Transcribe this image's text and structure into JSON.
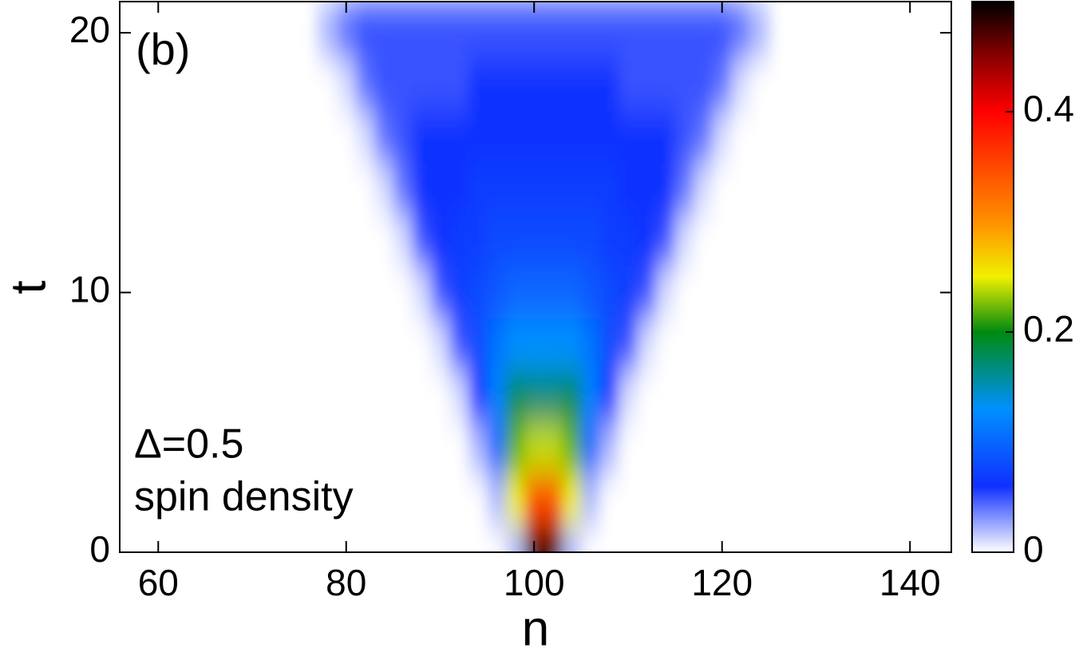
{
  "chart_data": {
    "type": "heatmap",
    "annotations": [
      "(b)",
      "Δ=0.5",
      "spin density"
    ],
    "xlabel": "n",
    "ylabel": "t",
    "x": [
      78,
      80,
      82,
      84,
      86,
      88,
      90,
      92,
      94,
      96,
      98,
      100,
      102,
      104,
      106,
      108,
      110,
      112,
      114,
      116,
      118,
      120,
      122,
      124
    ],
    "y": [
      0,
      2,
      4,
      6,
      8,
      10,
      12,
      14,
      16,
      18,
      20
    ],
    "z": [
      [
        0,
        0,
        0,
        0,
        0,
        0,
        0,
        0,
        0,
        0,
        0.02,
        0.48,
        0.48,
        0.02,
        0,
        0,
        0,
        0,
        0,
        0,
        0,
        0,
        0,
        0
      ],
      [
        0,
        0,
        0,
        0,
        0,
        0,
        0,
        0,
        0,
        0.02,
        0.25,
        0.35,
        0.35,
        0.25,
        0.02,
        0,
        0,
        0,
        0,
        0,
        0,
        0,
        0,
        0
      ],
      [
        0,
        0,
        0,
        0,
        0,
        0,
        0,
        0,
        0.02,
        0.1,
        0.22,
        0.24,
        0.24,
        0.22,
        0.1,
        0.02,
        0,
        0,
        0,
        0,
        0,
        0,
        0,
        0
      ],
      [
        0,
        0,
        0,
        0,
        0,
        0,
        0,
        0.01,
        0.06,
        0.12,
        0.18,
        0.17,
        0.17,
        0.18,
        0.12,
        0.06,
        0.01,
        0,
        0,
        0,
        0,
        0,
        0,
        0
      ],
      [
        0,
        0,
        0,
        0,
        0,
        0,
        0.01,
        0.05,
        0.08,
        0.11,
        0.13,
        0.13,
        0.13,
        0.13,
        0.11,
        0.08,
        0.05,
        0.01,
        0,
        0,
        0,
        0,
        0,
        0
      ],
      [
        0,
        0,
        0,
        0,
        0,
        0.01,
        0.05,
        0.07,
        0.08,
        0.09,
        0.1,
        0.1,
        0.1,
        0.1,
        0.09,
        0.08,
        0.07,
        0.05,
        0.01,
        0,
        0,
        0,
        0,
        0
      ],
      [
        0,
        0,
        0,
        0,
        0.01,
        0.05,
        0.06,
        0.07,
        0.07,
        0.08,
        0.08,
        0.08,
        0.08,
        0.08,
        0.08,
        0.07,
        0.07,
        0.06,
        0.05,
        0.01,
        0,
        0,
        0,
        0
      ],
      [
        0,
        0,
        0,
        0.01,
        0.04,
        0.06,
        0.06,
        0.06,
        0.07,
        0.07,
        0.07,
        0.07,
        0.07,
        0.07,
        0.07,
        0.07,
        0.06,
        0.06,
        0.06,
        0.04,
        0.01,
        0,
        0,
        0
      ],
      [
        0,
        0,
        0.01,
        0.04,
        0.05,
        0.06,
        0.06,
        0.06,
        0.06,
        0.06,
        0.06,
        0.06,
        0.06,
        0.06,
        0.06,
        0.06,
        0.06,
        0.06,
        0.06,
        0.05,
        0.04,
        0.01,
        0,
        0
      ],
      [
        0,
        0.01,
        0.04,
        0.05,
        0.05,
        0.05,
        0.05,
        0.05,
        0.06,
        0.06,
        0.06,
        0.06,
        0.06,
        0.06,
        0.06,
        0.06,
        0.05,
        0.05,
        0.05,
        0.05,
        0.05,
        0.04,
        0.01,
        0
      ],
      [
        0.02,
        0.04,
        0.05,
        0.05,
        0.05,
        0.05,
        0.05,
        0.05,
        0.05,
        0.05,
        0.05,
        0.05,
        0.05,
        0.05,
        0.05,
        0.05,
        0.05,
        0.05,
        0.05,
        0.05,
        0.05,
        0.05,
        0.04,
        0.02
      ]
    ],
    "xlim": [
      55.9,
      144.4
    ],
    "xticks": [
      60,
      80,
      100,
      120,
      140
    ],
    "ylim": [
      0,
      21.2
    ],
    "yticks": [
      0,
      10,
      20
    ],
    "zlim": [
      0,
      0.5
    ],
    "zticks": [
      0,
      0.2,
      0.4
    ],
    "colorscale": [
      [
        0,
        "#ffffff"
      ],
      [
        0.06,
        "#1030ff"
      ],
      [
        0.13,
        "#0090ff"
      ],
      [
        0.2,
        "#008a10"
      ],
      [
        0.25,
        "#f0f000"
      ],
      [
        0.3,
        "#ff9000"
      ],
      [
        0.4,
        "#ff0000"
      ],
      [
        0.45,
        "#8a0000"
      ],
      [
        0.5,
        "#000000"
      ]
    ]
  }
}
